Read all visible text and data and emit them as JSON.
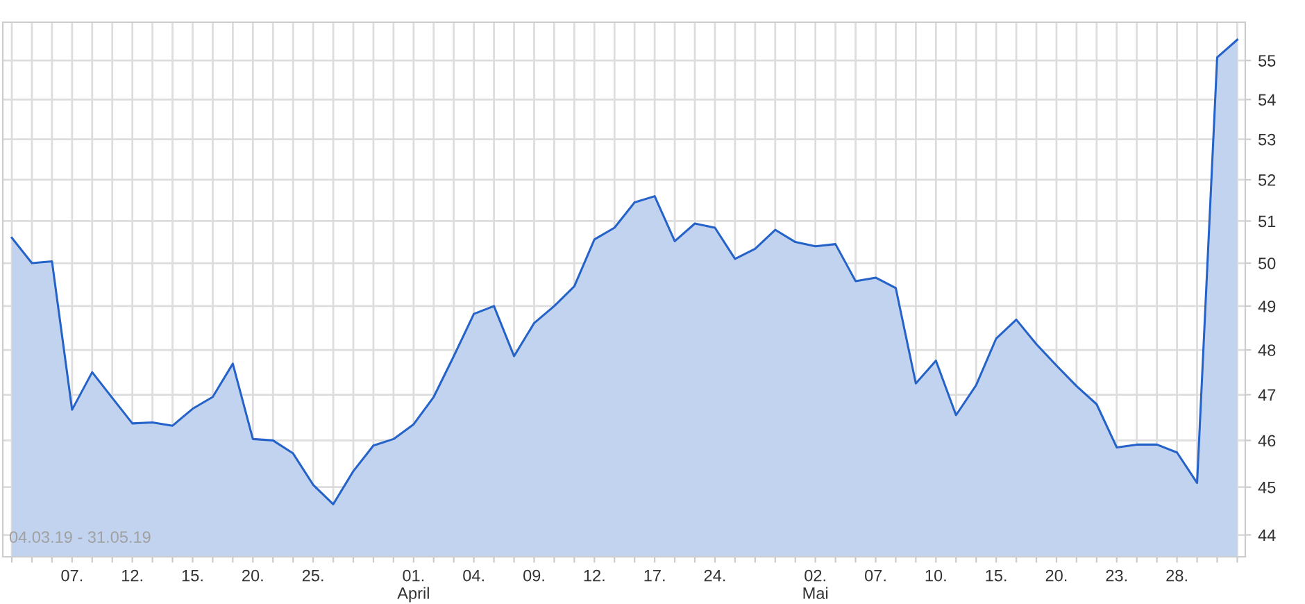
{
  "chart_data": {
    "type": "area",
    "categories": [
      null,
      null,
      null,
      "07.",
      null,
      null,
      "12.",
      null,
      null,
      "15.",
      null,
      null,
      "20.",
      null,
      null,
      "25.",
      null,
      null,
      null,
      null,
      "01.\nApril",
      null,
      null,
      "04.",
      null,
      null,
      "09.",
      null,
      null,
      "12.",
      null,
      null,
      "17.",
      null,
      null,
      "24.",
      null,
      null,
      null,
      null,
      "02.\nMai",
      null,
      null,
      "07.",
      null,
      null,
      "10.",
      null,
      null,
      "15.",
      null,
      null,
      "20.",
      null,
      null,
      "23.",
      null,
      null,
      "28.",
      null,
      null,
      null
    ],
    "series": [
      {
        "color": "#2563c9",
        "values": [
          50.6,
          50.0,
          50.04,
          46.67,
          47.5,
          46.93,
          46.37,
          46.39,
          46.32,
          46.69,
          46.95,
          47.69,
          46.03,
          46.0,
          45.72,
          45.05,
          44.64,
          45.34,
          45.89,
          46.03,
          46.35,
          46.95,
          47.86,
          48.82,
          49.0,
          47.86,
          48.61,
          49.0,
          49.46,
          50.56,
          50.84,
          51.45,
          51.6,
          50.52,
          50.94,
          50.84,
          50.1,
          50.34,
          50.79,
          50.5,
          50.4,
          50.45,
          49.58,
          49.66,
          49.42,
          47.25,
          47.76,
          46.55,
          47.21,
          48.26,
          48.69,
          48.13,
          47.65,
          47.19,
          46.79,
          45.85,
          45.91,
          45.91,
          45.74,
          45.09,
          55.08,
          55.54
        ]
      }
    ],
    "log": "y",
    "ylim": [
      43.55,
      56.0
    ],
    "yticks": [
      44,
      45,
      46,
      47,
      48,
      49,
      50,
      51,
      52,
      53,
      54,
      55
    ],
    "grid": true,
    "annotations": [
      "04.03.19 - 31.05.19"
    ]
  }
}
